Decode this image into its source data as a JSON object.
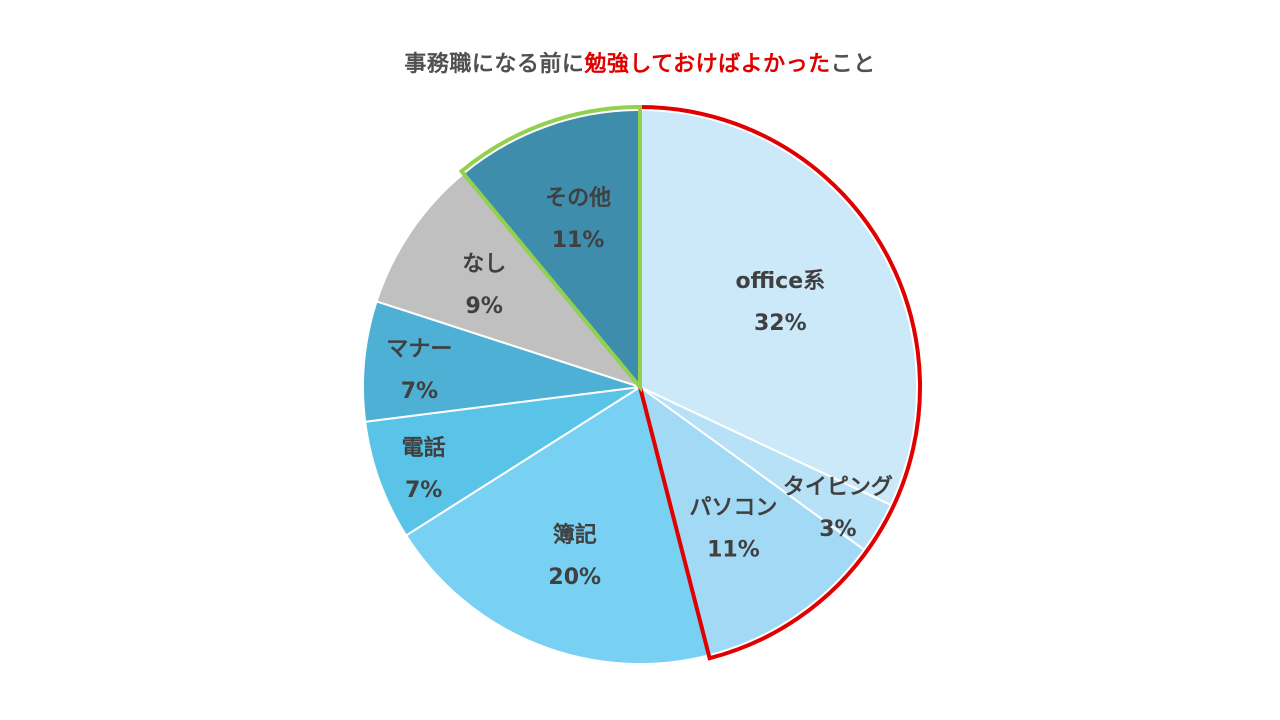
{
  "chart_data": {
    "type": "pie",
    "title_parts": [
      {
        "text": "事務職になる前に",
        "highlight": false
      },
      {
        "text": "勉強しておけばよかった",
        "highlight": true
      },
      {
        "text": "こと",
        "highlight": false
      }
    ],
    "slices": [
      {
        "label": "office系",
        "value": 32,
        "value_label": "32%",
        "color": "#cce9f9"
      },
      {
        "label": "タイピング",
        "value": 3,
        "value_label": "3%",
        "color": "#b6e1f7"
      },
      {
        "label": "パソコン",
        "value": 11,
        "value_label": "11%",
        "color": "#a2d9f5"
      },
      {
        "label": "簿記",
        "value": 20,
        "value_label": "20%",
        "color": "#78d0f3"
      },
      {
        "label": "電話",
        "value": 7,
        "value_label": "7%",
        "color": "#5ac3e8"
      },
      {
        "label": "マナー",
        "value": 7,
        "value_label": "7%",
        "color": "#4fb0d6"
      },
      {
        "label": "なし",
        "value": 9,
        "value_label": "9%",
        "color": "#c0c0c0"
      },
      {
        "label": "その他",
        "value": 11,
        "value_label": "11%",
        "color": "#3f8dad"
      }
    ],
    "highlight_groups": [
      {
        "slices": [
          "office系",
          "タイピング",
          "パソコン"
        ],
        "outline_color": "#e00000"
      },
      {
        "slices": [
          "その他"
        ],
        "outline_color": "#92d050"
      }
    ]
  }
}
